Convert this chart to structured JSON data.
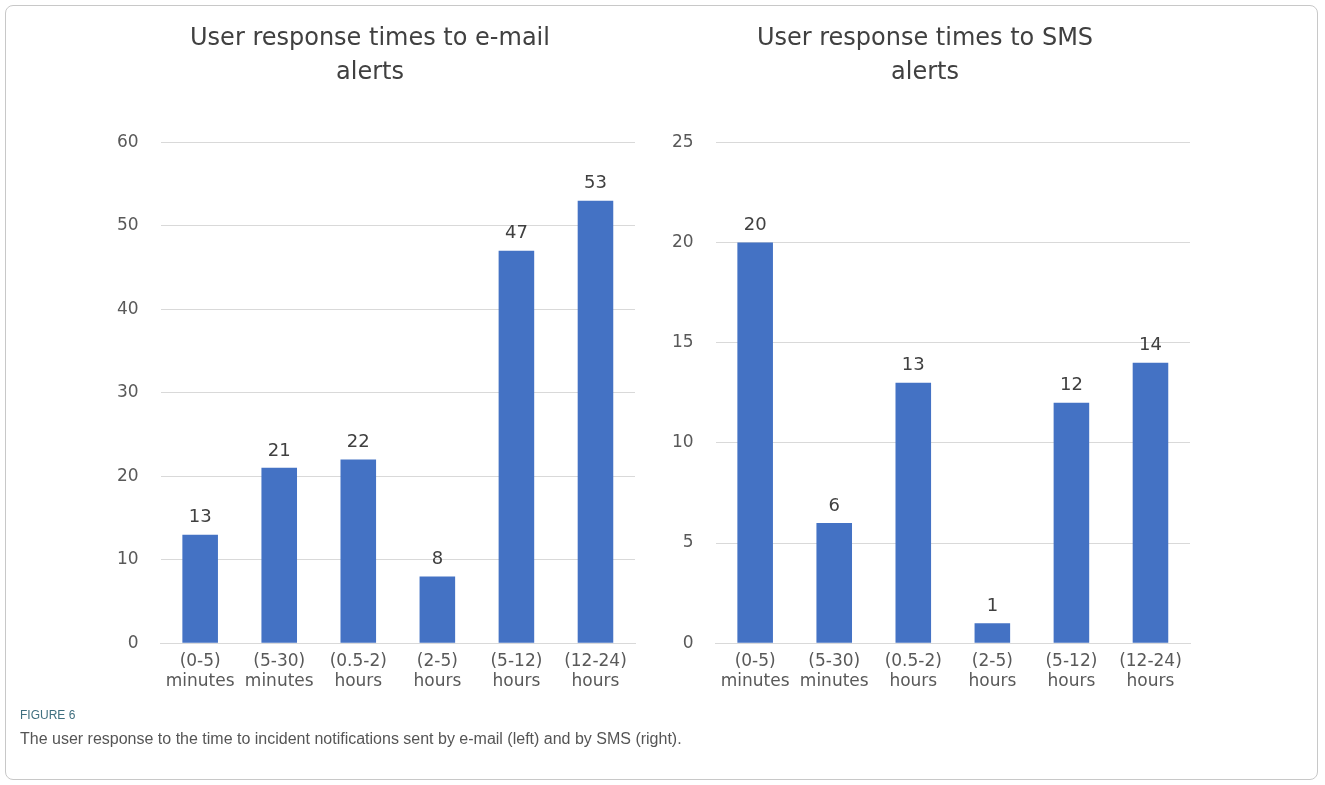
{
  "chart_data": [
    {
      "type": "bar",
      "title": "User response times to e-mail alerts",
      "categories": [
        "(0-5) minutes",
        "(5-30) minutes",
        "(0.5-2) hours",
        "(2-5) hours",
        "(5-12) hours",
        "(12-24) hours"
      ],
      "values": [
        13,
        21,
        22,
        8,
        47,
        53
      ],
      "color": "#4472c4",
      "ylim": [
        0,
        60
      ],
      "yticks": [
        0,
        10,
        20,
        30,
        40,
        50,
        60
      ],
      "grid": "y",
      "data_labels": true,
      "annotations": [
        "FIGURE 6",
        "The user response to the time to incident notifications sent by e-mail (left) and by SMS (right)."
      ]
    },
    {
      "type": "bar",
      "title": "User response times to SMS alerts",
      "categories": [
        "(0-5) minutes",
        "(5-30) minutes",
        "(0.5-2) hours",
        "(2-5) hours",
        "(5-12) hours",
        "(12-24) hours"
      ],
      "values": [
        20,
        6,
        13,
        1,
        12,
        14
      ],
      "color": "#4472c4",
      "ylim": [
        0,
        25
      ],
      "yticks": [
        0,
        5,
        10,
        15,
        20,
        25
      ],
      "grid": "y",
      "data_labels": true
    }
  ]
}
